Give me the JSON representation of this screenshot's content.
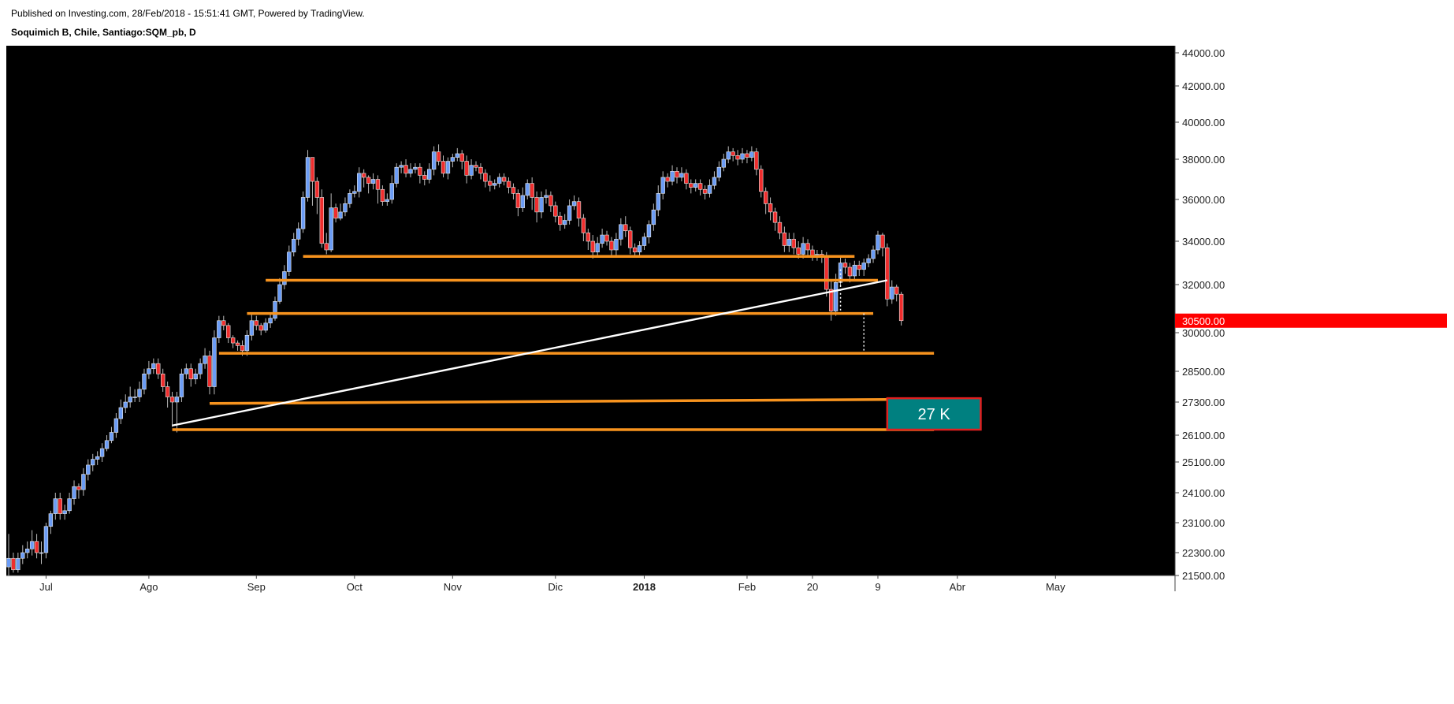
{
  "header": {
    "published": "Published on Investing.com, 28/Feb/2018 - 15:51:41 GMT, Powered by TradingView.",
    "symbol": "Soquimich B, Chile, Santiago:SQM_pb, D"
  },
  "colors": {
    "background": "#000000",
    "up": "#6b9cf5",
    "down": "#ef2d2d",
    "wick": "#bbbbbb",
    "level": "#f7931e",
    "trendline": "#ffffff",
    "price_badge": "#ff0000",
    "target_box": "#008080",
    "target_border": "#e02020"
  },
  "chart_data": {
    "type": "candlestick",
    "title": "Soquimich B, Chile, Santiago:SQM_pb, D",
    "x_ticks": [
      {
        "label": "Jul",
        "i": 8
      },
      {
        "label": "Ago",
        "i": 30
      },
      {
        "label": "Sep",
        "i": 53
      },
      {
        "label": "Oct",
        "i": 74
      },
      {
        "label": "Nov",
        "i": 95
      },
      {
        "label": "Dic",
        "i": 117
      },
      {
        "label": "2018",
        "i": 136,
        "bold": true
      },
      {
        "label": "Feb",
        "i": 158
      },
      {
        "label": "20",
        "i": 172
      },
      {
        "label": "9",
        "i": 186
      },
      {
        "label": "Abr",
        "i": 203
      },
      {
        "label": "May",
        "i": 224
      }
    ],
    "y_ticks": [
      21500,
      22300,
      23100,
      24100,
      25100,
      26100,
      27300,
      28500,
      30000,
      32000,
      34000,
      36000,
      38000,
      40000,
      42000,
      44000
    ],
    "y_tick_labels": [
      "21500.00",
      "22300.00",
      "23100.00",
      "24100.00",
      "25100.00",
      "26100.00",
      "27300.00",
      "28500.00",
      "30000.00",
      "32000.00",
      "34000.00",
      "36000.00",
      "38000.00",
      "40000.00",
      "42000.00",
      "44000.00"
    ],
    "last_price": 30500,
    "last_price_label": "30500.00",
    "x_range": [
      0,
      226
    ],
    "candles": [
      [
        21800,
        22100,
        22800,
        21500
      ],
      [
        22100,
        21700,
        22300,
        21600
      ],
      [
        21700,
        22100,
        22300,
        21600
      ],
      [
        22100,
        22300,
        22500,
        21900
      ],
      [
        22300,
        22400,
        22600,
        22100
      ],
      [
        22400,
        22600,
        22900,
        22200
      ],
      [
        22600,
        22300,
        22800,
        22100
      ],
      [
        22300,
        22300,
        22600,
        21900
      ],
      [
        22300,
        23000,
        23100,
        22100
      ],
      [
        23000,
        23400,
        23500,
        22800
      ],
      [
        23400,
        23900,
        24100,
        23200
      ],
      [
        23900,
        23400,
        24100,
        23200
      ],
      [
        23400,
        23500,
        23700,
        23200
      ],
      [
        23500,
        23900,
        24100,
        23400
      ],
      [
        23900,
        24300,
        24500,
        23700
      ],
      [
        24300,
        24200,
        24400,
        23900
      ],
      [
        24200,
        24700,
        24900,
        24000
      ],
      [
        24700,
        25000,
        25200,
        24500
      ],
      [
        25000,
        25200,
        25400,
        24800
      ],
      [
        25200,
        25300,
        25500,
        25000
      ],
      [
        25300,
        25600,
        25800,
        25100
      ],
      [
        25600,
        25900,
        26100,
        25500
      ],
      [
        25900,
        26200,
        26400,
        25800
      ],
      [
        26200,
        26700,
        26900,
        26000
      ],
      [
        26700,
        27100,
        27400,
        26500
      ],
      [
        27100,
        27300,
        27600,
        26900
      ],
      [
        27300,
        27500,
        27900,
        27100
      ],
      [
        27500,
        27500,
        27800,
        27300
      ],
      [
        27500,
        27800,
        28100,
        27300
      ],
      [
        27800,
        28400,
        28600,
        27600
      ],
      [
        28400,
        28600,
        28900,
        28200
      ],
      [
        28600,
        28800,
        29000,
        28400
      ],
      [
        28800,
        28400,
        29000,
        28200
      ],
      [
        28400,
        27900,
        28600,
        27700
      ],
      [
        27900,
        27500,
        28100,
        27100
      ],
      [
        27500,
        27300,
        27700,
        26400
      ],
      [
        27300,
        27500,
        27700,
        26200
      ],
      [
        27500,
        28400,
        28600,
        27300
      ],
      [
        28400,
        28600,
        28800,
        28200
      ],
      [
        28600,
        28200,
        28800,
        27900
      ],
      [
        28200,
        28400,
        28600,
        28000
      ],
      [
        28400,
        28800,
        29000,
        28200
      ],
      [
        28800,
        29100,
        29400,
        28600
      ],
      [
        29100,
        27900,
        29300,
        27600
      ],
      [
        27900,
        29800,
        30100,
        27600
      ],
      [
        29800,
        30500,
        30700,
        29600
      ],
      [
        30500,
        30300,
        30700,
        30100
      ],
      [
        30300,
        29800,
        30400,
        29600
      ],
      [
        29800,
        29600,
        29900,
        29400
      ],
      [
        29600,
        29500,
        29700,
        29300
      ],
      [
        29500,
        29300,
        29700,
        29100
      ],
      [
        29300,
        29900,
        30100,
        29100
      ],
      [
        29900,
        30500,
        30800,
        29700
      ],
      [
        30500,
        30300,
        30700,
        30100
      ],
      [
        30300,
        30100,
        30400,
        29900
      ],
      [
        30100,
        30400,
        30600,
        30000
      ],
      [
        30400,
        30600,
        30800,
        30200
      ],
      [
        30600,
        31300,
        31500,
        30500
      ],
      [
        31300,
        32000,
        32300,
        31200
      ],
      [
        32000,
        32600,
        32900,
        31800
      ],
      [
        32600,
        33500,
        33800,
        32400
      ],
      [
        33500,
        34100,
        34400,
        33300
      ],
      [
        34100,
        34600,
        34900,
        33800
      ],
      [
        34600,
        36100,
        36400,
        34400
      ],
      [
        36100,
        38100,
        38500,
        35900
      ],
      [
        38100,
        36900,
        37300,
        35700
      ],
      [
        36900,
        36100,
        37100,
        35300
      ],
      [
        36100,
        33900,
        36500,
        33700
      ],
      [
        33900,
        33600,
        34400,
        33400
      ],
      [
        33600,
        35600,
        36300,
        33500
      ],
      [
        35600,
        35100,
        35800,
        34900
      ],
      [
        35100,
        35400,
        35800,
        35000
      ],
      [
        35400,
        35800,
        36100,
        35200
      ],
      [
        35800,
        36300,
        36500,
        35600
      ],
      [
        36300,
        36400,
        36700,
        36100
      ],
      [
        36400,
        37300,
        37600,
        36100
      ],
      [
        37300,
        37100,
        37500,
        36600
      ],
      [
        37100,
        36800,
        37200,
        36300
      ],
      [
        36800,
        37000,
        37300,
        36500
      ],
      [
        37000,
        36500,
        37200,
        35800
      ],
      [
        36500,
        35900,
        36700,
        35700
      ],
      [
        35900,
        36000,
        36300,
        35700
      ],
      [
        36000,
        36800,
        37200,
        35800
      ],
      [
        36800,
        37600,
        37800,
        36600
      ],
      [
        37600,
        37700,
        37900,
        37300
      ],
      [
        37700,
        37300,
        38000,
        37100
      ],
      [
        37300,
        37500,
        37800,
        37100
      ],
      [
        37500,
        37600,
        37800,
        37300
      ],
      [
        37600,
        37200,
        37800,
        36800
      ],
      [
        37200,
        37000,
        37400,
        36700
      ],
      [
        37000,
        37500,
        37800,
        36800
      ],
      [
        37500,
        38400,
        38700,
        37200
      ],
      [
        38400,
        37900,
        38800,
        37700
      ],
      [
        37900,
        37300,
        38200,
        37100
      ],
      [
        37300,
        37900,
        38100,
        37000
      ],
      [
        37900,
        38100,
        38300,
        37600
      ],
      [
        38100,
        38300,
        38600,
        37900
      ],
      [
        38300,
        37900,
        38500,
        37500
      ],
      [
        37900,
        37200,
        38200,
        36800
      ],
      [
        37200,
        37700,
        38000,
        37000
      ],
      [
        37700,
        37600,
        37900,
        37400
      ],
      [
        37600,
        37300,
        37800,
        37000
      ],
      [
        37300,
        36900,
        37500,
        36600
      ],
      [
        36900,
        36700,
        37200,
        36400
      ],
      [
        36700,
        36800,
        37000,
        36500
      ],
      [
        36800,
        37100,
        37300,
        36600
      ],
      [
        37100,
        36900,
        37300,
        36700
      ],
      [
        36900,
        36600,
        37100,
        36300
      ],
      [
        36600,
        36300,
        36800,
        36000
      ],
      [
        36300,
        35600,
        36500,
        35200
      ],
      [
        35600,
        36200,
        36600,
        35400
      ],
      [
        36200,
        36800,
        37000,
        36000
      ],
      [
        36800,
        36100,
        37100,
        35500
      ],
      [
        36100,
        35400,
        36400,
        34900
      ],
      [
        35400,
        36100,
        36400,
        35100
      ],
      [
        36100,
        36200,
        36500,
        35800
      ],
      [
        36200,
        35700,
        36400,
        35400
      ],
      [
        35700,
        35200,
        35900,
        34900
      ],
      [
        35200,
        34800,
        35400,
        34500
      ],
      [
        34800,
        35000,
        35300,
        34600
      ],
      [
        35000,
        35700,
        36000,
        34800
      ],
      [
        35700,
        35900,
        36200,
        35500
      ],
      [
        35900,
        35100,
        36100,
        34700
      ],
      [
        35100,
        34400,
        35300,
        34000
      ],
      [
        34400,
        34000,
        34600,
        33600
      ],
      [
        34000,
        33500,
        34300,
        33200
      ],
      [
        33500,
        33900,
        34200,
        33300
      ],
      [
        33900,
        34300,
        34600,
        33700
      ],
      [
        34300,
        34000,
        34500,
        33800
      ],
      [
        34000,
        33600,
        34200,
        33300
      ],
      [
        33600,
        34100,
        34400,
        33300
      ],
      [
        34100,
        34800,
        35100,
        33800
      ],
      [
        34800,
        34500,
        35200,
        34200
      ],
      [
        34500,
        33700,
        34700,
        33400
      ],
      [
        33700,
        33500,
        33900,
        33300
      ],
      [
        33500,
        33800,
        34000,
        33300
      ],
      [
        33800,
        34200,
        34400,
        33600
      ],
      [
        34200,
        34800,
        35000,
        33900
      ],
      [
        34800,
        35500,
        35800,
        34500
      ],
      [
        35500,
        36300,
        36700,
        35200
      ],
      [
        36300,
        37100,
        37400,
        36000
      ],
      [
        37100,
        36900,
        37300,
        36600
      ],
      [
        36900,
        37400,
        37700,
        36700
      ],
      [
        37400,
        37100,
        37600,
        36800
      ],
      [
        37100,
        37300,
        37600,
        36900
      ],
      [
        37300,
        36800,
        37500,
        36500
      ],
      [
        36800,
        36600,
        37000,
        36300
      ],
      [
        36600,
        36800,
        37000,
        36400
      ],
      [
        36800,
        36500,
        37000,
        36200
      ],
      [
        36500,
        36300,
        36700,
        36000
      ],
      [
        36300,
        36700,
        37000,
        36100
      ],
      [
        36700,
        37100,
        37400,
        36500
      ],
      [
        37100,
        37600,
        37900,
        36900
      ],
      [
        37600,
        38000,
        38300,
        37400
      ],
      [
        38000,
        38400,
        38700,
        37800
      ],
      [
        38400,
        38200,
        38600,
        37900
      ],
      [
        38200,
        38000,
        38500,
        37700
      ],
      [
        38000,
        38300,
        38600,
        37800
      ],
      [
        38300,
        38100,
        38500,
        37800
      ],
      [
        38100,
        38400,
        38700,
        37900
      ],
      [
        38400,
        37500,
        38600,
        37200
      ],
      [
        37500,
        36400,
        37700,
        36100
      ],
      [
        36400,
        35800,
        36600,
        35300
      ],
      [
        35800,
        35400,
        36100,
        35000
      ],
      [
        35400,
        34900,
        35600,
        34500
      ],
      [
        34900,
        34400,
        35200,
        34100
      ],
      [
        34400,
        33800,
        34700,
        33500
      ],
      [
        33800,
        34100,
        34400,
        33500
      ],
      [
        34100,
        33700,
        34400,
        33400
      ],
      [
        33700,
        33400,
        34000,
        33200
      ],
      [
        33400,
        33900,
        34200,
        33200
      ],
      [
        33900,
        33600,
        34100,
        33300
      ],
      [
        33600,
        33300,
        33800,
        33100
      ],
      [
        33300,
        33400,
        33600,
        33100
      ],
      [
        33400,
        33300,
        33600,
        33000
      ],
      [
        33300,
        31800,
        33500,
        31500
      ],
      [
        31800,
        30900,
        32200,
        30500
      ],
      [
        30900,
        32100,
        32500,
        30700
      ],
      [
        32100,
        33000,
        33300,
        31900
      ],
      [
        33000,
        32800,
        33200,
        32500
      ],
      [
        32800,
        32400,
        33000,
        32100
      ],
      [
        32400,
        32900,
        33100,
        32200
      ],
      [
        32900,
        32700,
        33100,
        32400
      ],
      [
        32700,
        33000,
        33200,
        32400
      ],
      [
        33000,
        33200,
        33400,
        32800
      ],
      [
        33200,
        33600,
        33800,
        33000
      ],
      [
        33600,
        34300,
        34500,
        33400
      ],
      [
        34300,
        33700,
        34400,
        33300
      ],
      [
        33700,
        31400,
        33900,
        31100
      ],
      [
        31400,
        31900,
        32200,
        31200
      ],
      [
        31900,
        31600,
        32000,
        31300
      ],
      [
        31600,
        30500,
        31700,
        30300
      ]
    ],
    "levels": [
      {
        "price": 33300,
        "i0": 63,
        "i1": 181
      },
      {
        "price": 32200,
        "i0": 55,
        "i1": 186
      },
      {
        "price": 30800,
        "i0": 51,
        "i1": 185
      },
      {
        "price": 29200,
        "i0": 45,
        "i1": 198
      },
      {
        "price": 27250,
        "i1": 188,
        "p1": 27400,
        "i0": 43
      },
      {
        "price": 26300,
        "i0": 35,
        "i1": 198
      }
    ],
    "trendline": {
      "i0": 35,
      "p0": 26450,
      "i1": 188,
      "p1": 32200
    },
    "target_label": "27 K",
    "target_box": {
      "i0": 188,
      "i1": 208,
      "p_top": 27450,
      "p_bottom": 26300
    }
  }
}
